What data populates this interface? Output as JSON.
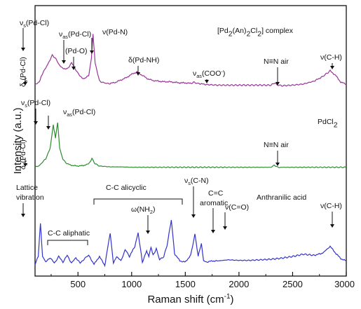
{
  "chart_data": {
    "type": "line",
    "xlabel": "Raman shift (cm",
    "xlabel_sup": "-1",
    "xlabel_tail": ")",
    "ylabel": "Intensity (a.u.)",
    "xlim": [
      100,
      3000
    ],
    "xticks": [
      500,
      1000,
      1500,
      2000,
      2500,
      3000
    ],
    "xtick_labels": [
      "500",
      "1000",
      "1500",
      "2000",
      "2500",
      "3000"
    ],
    "y_ticks_shown": false,
    "colors": {
      "complex": "#993399",
      "pdcl2": "#2e8b2e",
      "anthranilic": "#3232cc"
    },
    "series": [
      {
        "name": "[Pd2(An)2Cl2] complex",
        "label_parts": [
          [
            "[Pd",
            "n"
          ],
          [
            "2",
            "s"
          ],
          [
            "(An)",
            "n"
          ],
          [
            "2",
            "s"
          ],
          [
            "Cl",
            "n"
          ],
          [
            "2",
            "s"
          ],
          [
            "] complex",
            "n"
          ]
        ],
        "key": "complex",
        "x": [
          100,
          140,
          160,
          190,
          220,
          260,
          290,
          320,
          350,
          400,
          440,
          480,
          520,
          560,
          600,
          625,
          640,
          660,
          700,
          760,
          800,
          850,
          900,
          950,
          1000,
          1050,
          1100,
          1150,
          1200,
          1250,
          1300,
          1350,
          1400,
          1450,
          1500,
          1550,
          1580,
          1620,
          1700,
          1800,
          1900,
          2000,
          2100,
          2200,
          2300,
          2330,
          2360,
          2400,
          2500,
          2600,
          2700,
          2780,
          2850,
          2900,
          2950,
          3000
        ],
        "y": [
          0.05,
          0.08,
          0.2,
          0.3,
          0.4,
          0.55,
          0.5,
          0.4,
          0.33,
          0.31,
          0.42,
          0.3,
          0.18,
          0.14,
          0.2,
          0.5,
          0.92,
          0.42,
          0.1,
          0.06,
          0.06,
          0.08,
          0.12,
          0.16,
          0.22,
          0.26,
          0.2,
          0.14,
          0.11,
          0.1,
          0.09,
          0.09,
          0.08,
          0.07,
          0.07,
          0.06,
          0.08,
          0.06,
          0.04,
          0.03,
          0.03,
          0.03,
          0.03,
          0.03,
          0.03,
          0.07,
          0.03,
          0.02,
          0.03,
          0.05,
          0.1,
          0.18,
          0.28,
          0.2,
          0.08,
          0.05
        ]
      },
      {
        "name": "PdCl2",
        "label_parts": [
          [
            "PdCl",
            "n"
          ],
          [
            "2",
            "s"
          ]
        ],
        "key": "pdcl2",
        "x": [
          100,
          140,
          170,
          200,
          240,
          270,
          290,
          310,
          330,
          360,
          400,
          450,
          500,
          550,
          600,
          630,
          660,
          700,
          800,
          900,
          1000,
          1100,
          1200,
          1300,
          1400,
          1500,
          1600,
          1700,
          1800,
          1900,
          2000,
          2100,
          2200,
          2300,
          2330,
          2360,
          2400,
          2500,
          2600,
          2700,
          2800,
          2900,
          3000
        ],
        "y": [
          0.02,
          0.06,
          0.14,
          0.22,
          0.45,
          1.0,
          0.7,
          1.05,
          0.45,
          0.2,
          0.1,
          0.06,
          0.05,
          0.06,
          0.1,
          0.22,
          0.1,
          0.05,
          0.03,
          0.03,
          0.02,
          0.02,
          0.02,
          0.02,
          0.02,
          0.02,
          0.02,
          0.02,
          0.02,
          0.02,
          0.02,
          0.02,
          0.02,
          0.02,
          0.07,
          0.02,
          0.02,
          0.02,
          0.02,
          0.02,
          0.02,
          0.02,
          0.02
        ]
      },
      {
        "name": "Anthranilic acid",
        "label_parts": [
          [
            "Anthranilic acid",
            "n"
          ]
        ],
        "key": "anthranilic",
        "x": [
          100,
          130,
          150,
          170,
          200,
          240,
          280,
          320,
          360,
          400,
          440,
          480,
          520,
          560,
          600,
          650,
          700,
          750,
          800,
          830,
          860,
          900,
          940,
          980,
          1030,
          1060,
          1100,
          1140,
          1160,
          1180,
          1200,
          1230,
          1260,
          1300,
          1330,
          1370,
          1400,
          1450,
          1500,
          1550,
          1590,
          1620,
          1650,
          1670,
          1700,
          1750,
          1800,
          1900,
          2000,
          2100,
          2200,
          2300,
          2400,
          2500,
          2600,
          2700,
          2780,
          2850,
          2900,
          2950,
          3000
        ],
        "y": [
          0.06,
          0.2,
          0.8,
          0.2,
          0.1,
          0.18,
          0.08,
          0.2,
          0.1,
          0.22,
          0.08,
          0.18,
          0.08,
          0.16,
          0.22,
          0.06,
          0.2,
          0.04,
          0.62,
          0.08,
          0.2,
          0.12,
          0.32,
          0.2,
          0.38,
          0.62,
          0.1,
          0.3,
          0.2,
          0.36,
          0.22,
          0.34,
          0.14,
          0.2,
          0.4,
          0.85,
          0.25,
          0.12,
          0.1,
          0.22,
          0.6,
          0.2,
          0.44,
          0.12,
          0.1,
          0.12,
          0.12,
          0.14,
          0.13,
          0.13,
          0.14,
          0.15,
          0.17,
          0.2,
          0.24,
          0.22,
          0.26,
          0.38,
          0.26,
          0.16,
          0.12
        ]
      }
    ],
    "annotations": [
      {
        "parts": [
          [
            "ν",
            "n"
          ],
          [
            "s",
            "s"
          ],
          [
            "(Pd-Cl)",
            "n"
          ]
        ],
        "series": "complex"
      },
      {
        "parts": [
          [
            "ν",
            "n"
          ],
          [
            "as",
            "s"
          ],
          [
            "(Pd-Cl)",
            "n"
          ]
        ],
        "series": "complex"
      },
      {
        "parts": [
          [
            "(Pd-O)",
            "n"
          ]
        ],
        "series": "complex"
      },
      {
        "parts": [
          [
            "ν(Pd-N)",
            "n"
          ]
        ],
        "series": "complex"
      },
      {
        "parts": [
          [
            "δ",
            "n"
          ],
          [
            "s",
            "s"
          ],
          [
            "(Pd-Cl)",
            "n"
          ]
        ],
        "series": "complex"
      },
      {
        "parts": [
          [
            "δ(Pd-NH)",
            "n"
          ]
        ],
        "series": "complex"
      },
      {
        "parts": [
          [
            "ν",
            "n"
          ],
          [
            "as",
            "s"
          ],
          [
            "(COO",
            "n"
          ],
          [
            "-",
            "p"
          ],
          [
            ")",
            "n"
          ]
        ],
        "series": "complex"
      },
      {
        "parts": [
          [
            "N≡N air",
            "n"
          ]
        ],
        "series": "complex"
      },
      {
        "parts": [
          [
            "ν(C-H)",
            "n"
          ]
        ],
        "series": "complex"
      },
      {
        "parts": [
          [
            "ν",
            "n"
          ],
          [
            "s",
            "s"
          ],
          [
            "(Pd-Cl)",
            "n"
          ]
        ],
        "series": "pdcl2"
      },
      {
        "parts": [
          [
            "ν",
            "n"
          ],
          [
            "as",
            "s"
          ],
          [
            "(Pd-Cl)",
            "n"
          ]
        ],
        "series": "pdcl2"
      },
      {
        "parts": [
          [
            "δ",
            "n"
          ],
          [
            "s",
            "s"
          ],
          [
            "(Pd-Cl)",
            "n"
          ]
        ],
        "series": "pdcl2"
      },
      {
        "parts": [
          [
            "N≡N air",
            "n"
          ]
        ],
        "series": "pdcl2"
      },
      {
        "parts": [
          [
            "Lattice",
            "n"
          ]
        ],
        "series": "anthranilic"
      },
      {
        "parts": [
          [
            "vibration",
            "n"
          ]
        ],
        "series": "anthranilic"
      },
      {
        "parts": [
          [
            "C-C aliphatic",
            "n"
          ]
        ],
        "series": "anthranilic"
      },
      {
        "parts": [
          [
            "C-C alicyclic",
            "n"
          ]
        ],
        "series": "anthranilic"
      },
      {
        "parts": [
          [
            "ω(NH",
            "n"
          ],
          [
            "2",
            "s"
          ],
          [
            ")",
            "n"
          ]
        ],
        "series": "anthranilic"
      },
      {
        "parts": [
          [
            "ν",
            "n"
          ],
          [
            "s",
            "s"
          ],
          [
            "(C-N)",
            "n"
          ]
        ],
        "series": "anthranilic"
      },
      {
        "parts": [
          [
            "C=C",
            "n"
          ]
        ],
        "series": "anthranilic"
      },
      {
        "parts": [
          [
            "aromatic",
            "n"
          ]
        ],
        "series": "anthranilic"
      },
      {
        "parts": [
          [
            "ν(C=O)",
            "n"
          ]
        ],
        "series": "anthranilic"
      },
      {
        "parts": [
          [
            "ν(C-H)",
            "n"
          ]
        ],
        "series": "anthranilic"
      }
    ]
  }
}
